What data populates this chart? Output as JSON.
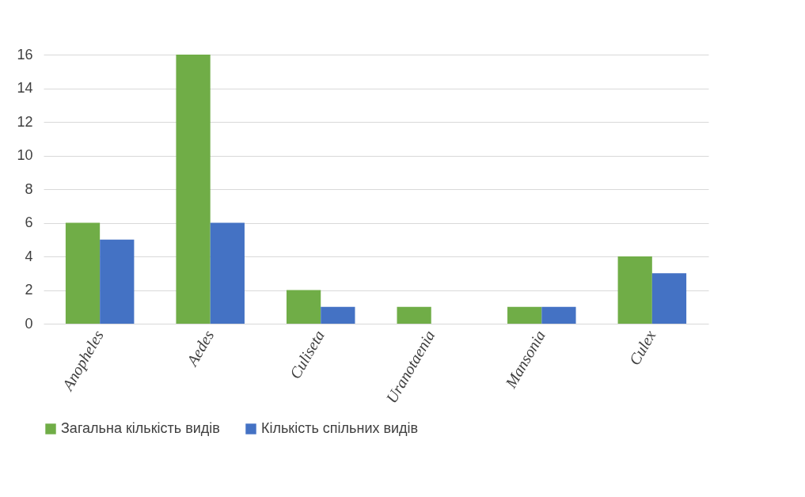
{
  "chart_data": {
    "type": "bar",
    "categories": [
      "Anopheles",
      "Aedes",
      "Culiseta",
      "Uranotaenia",
      "Mansonia",
      "Culex"
    ],
    "series": [
      {
        "name": "Загальна кількість видів",
        "color": "#70ad47",
        "values": [
          6,
          16,
          2,
          1,
          1,
          4
        ]
      },
      {
        "name": "Кількість спільних видів",
        "color": "#4472c4",
        "values": [
          5,
          6,
          1,
          0,
          1,
          3
        ]
      }
    ],
    "ylim": [
      0,
      16
    ],
    "yticks": [
      0,
      2,
      4,
      6,
      8,
      10,
      12,
      14,
      16
    ],
    "grid": "y",
    "legend": "bottom"
  }
}
